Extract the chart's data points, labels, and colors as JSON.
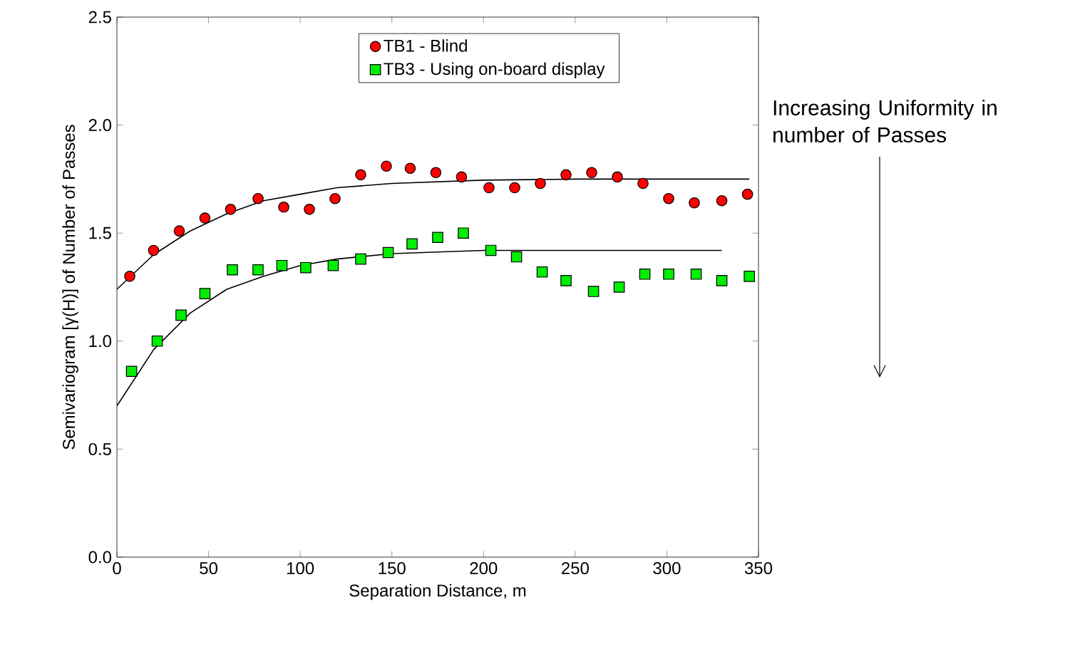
{
  "chart_data": {
    "type": "scatter",
    "xlabel": "Separation Distance, m",
    "ylabel": "Semivariogram [γ(H)] of Number of Passes",
    "xlim": [
      0,
      350
    ],
    "ylim": [
      0,
      2.5
    ],
    "xticks": [
      0,
      50,
      100,
      150,
      200,
      250,
      300,
      350
    ],
    "yticks": [
      {
        "value": 0,
        "label": "0.0"
      },
      {
        "value": 0.5,
        "label": "0.5"
      },
      {
        "value": 1,
        "label": "1.0"
      },
      {
        "value": 1.5,
        "label": "1.5"
      },
      {
        "value": 2,
        "label": "2.0"
      },
      {
        "value": 2.5,
        "label": "2.5"
      }
    ],
    "legend": "top",
    "grid": false,
    "annotations": [
      "Increasing Uniformity in number of Passes"
    ],
    "series": [
      {
        "name": "TB1 - Blind",
        "color": "#ff0000",
        "marker": "circle",
        "x": [
          7,
          20,
          34,
          48,
          62,
          77,
          91,
          105,
          119,
          133,
          147,
          160,
          174,
          188,
          203,
          217,
          231,
          245,
          259,
          273,
          287,
          301,
          315,
          330,
          344
        ],
        "values": [
          1.3,
          1.42,
          1.51,
          1.57,
          1.61,
          1.66,
          1.62,
          1.61,
          1.66,
          1.77,
          1.81,
          1.8,
          1.78,
          1.76,
          1.71,
          1.71,
          1.73,
          1.77,
          1.78,
          1.76,
          1.73,
          1.66,
          1.64,
          1.65,
          1.68
        ]
      },
      {
        "name": "TB3 - Using on-board display",
        "color": "#00ee00",
        "marker": "square",
        "x": [
          8,
          22,
          35,
          48,
          63,
          77,
          90,
          103,
          118,
          133,
          148,
          161,
          175,
          189,
          204,
          218,
          232,
          245,
          260,
          274,
          288,
          301,
          316,
          330,
          345
        ],
        "values": [
          0.86,
          1.0,
          1.12,
          1.22,
          1.33,
          1.33,
          1.35,
          1.34,
          1.35,
          1.38,
          1.41,
          1.45,
          1.48,
          1.5,
          1.42,
          1.39,
          1.32,
          1.28,
          1.23,
          1.25,
          1.31,
          1.31,
          1.31,
          1.28,
          1.3
        ]
      },
      {
        "type": "line",
        "color": "#000000",
        "marker": "none",
        "x": [
          0,
          20,
          40,
          60,
          80,
          100,
          120,
          150,
          200,
          250,
          345
        ],
        "values": [
          1.24,
          1.4,
          1.51,
          1.59,
          1.65,
          1.68,
          1.71,
          1.73,
          1.745,
          1.75,
          1.75
        ]
      },
      {
        "type": "line",
        "color": "#000000",
        "marker": "none",
        "x": [
          0,
          20,
          40,
          60,
          80,
          100,
          120,
          150,
          200,
          330
        ],
        "values": [
          0.7,
          0.96,
          1.13,
          1.24,
          1.3,
          1.35,
          1.38,
          1.405,
          1.42,
          1.42
        ]
      }
    ]
  }
}
